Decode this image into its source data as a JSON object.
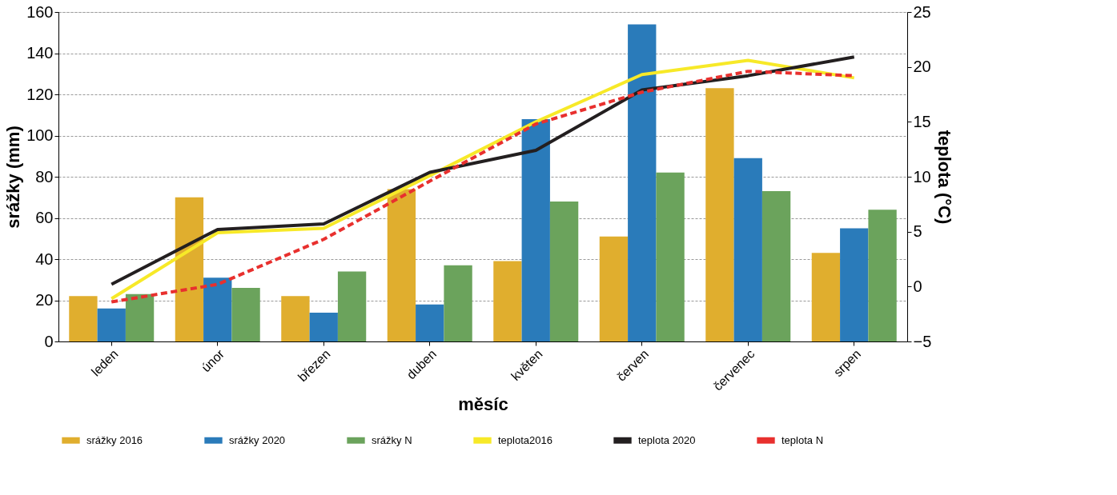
{
  "chart_data": {
    "type": "bar",
    "xlabel": "měsíc",
    "ylabel": "srážky (mm)",
    "y2label": "teplota (°C)",
    "categories": [
      "leden",
      "únor",
      "březen",
      "duben",
      "květen",
      "červen",
      "červenec",
      "srpen"
    ],
    "series": [
      {
        "name": "srážky 2016",
        "color": "#e0ae2e",
        "values": [
          22,
          70,
          22,
          74,
          39,
          51,
          123,
          43
        ]
      },
      {
        "name": "srážky 2020",
        "color": "#2a7bba",
        "values": [
          16,
          31,
          14,
          18,
          108,
          154,
          89,
          55
        ]
      },
      {
        "name": "srážky N",
        "color": "#6ba35c",
        "values": [
          23,
          26,
          34,
          37,
          68,
          82,
          73,
          64
        ]
      },
      {
        "name": "teplota2016",
        "color": "#f7e928",
        "type": "line",
        "axis": "y2",
        "values": [
          -1.1,
          4.9,
          5.3,
          10.1,
          15.0,
          19.3,
          20.6,
          19.0
        ]
      },
      {
        "name": "teplota 2020",
        "color": "#231f20",
        "type": "line",
        "axis": "y2",
        "values": [
          0.2,
          5.2,
          5.7,
          10.4,
          12.4,
          17.9,
          19.2,
          20.9
        ]
      },
      {
        "name": "teplota N",
        "color": "#e8302e",
        "type": "line",
        "axis": "y2",
        "line_style": "dashed",
        "values": [
          -1.4,
          0.2,
          4.3,
          9.6,
          14.8,
          17.7,
          19.6,
          19.2
        ]
      }
    ],
    "ylim": [
      0,
      160
    ],
    "yticks": [
      0,
      20,
      40,
      60,
      80,
      100,
      120,
      140,
      160
    ],
    "y2lim": [
      -5,
      25
    ],
    "y2ticks": [
      -5,
      0,
      5,
      10,
      15,
      20,
      25
    ],
    "grid": "y",
    "legend": "bottom",
    "marker": "none"
  }
}
